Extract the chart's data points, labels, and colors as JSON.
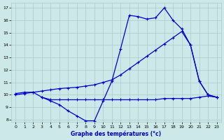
{
  "xlabel": "Graphe des températures (°c)",
  "bg_color": "#cce8e8",
  "grid_color": "#aacccc",
  "line_color": "#0000cc",
  "xlim": [
    -0.5,
    23.5
  ],
  "ylim": [
    7.8,
    17.4
  ],
  "xticks": [
    0,
    1,
    2,
    3,
    4,
    5,
    6,
    7,
    8,
    9,
    10,
    11,
    12,
    13,
    14,
    15,
    16,
    17,
    18,
    19,
    20,
    21,
    22,
    23
  ],
  "yticks": [
    8,
    9,
    10,
    11,
    12,
    13,
    14,
    15,
    16,
    17
  ],
  "line1_x": [
    0,
    1,
    2,
    3,
    4,
    5,
    6,
    7,
    8,
    9,
    10,
    11,
    12,
    13,
    14,
    15,
    16,
    17,
    18,
    19,
    20,
    21,
    22,
    23
  ],
  "line1_y": [
    10.1,
    10.2,
    10.2,
    9.8,
    9.5,
    9.2,
    8.7,
    8.3,
    7.9,
    7.9,
    9.5,
    11.1,
    13.7,
    16.4,
    16.3,
    16.1,
    16.2,
    17.0,
    16.0,
    15.3,
    14.0,
    11.1,
    10.0,
    9.8
  ],
  "line2_x": [
    0,
    1,
    2,
    3,
    4,
    5,
    6,
    7,
    8,
    9,
    10,
    11,
    12,
    13,
    14,
    15,
    16,
    17,
    18,
    19,
    20,
    21,
    22,
    23
  ],
  "line2_y": [
    10.0,
    10.1,
    10.2,
    10.3,
    10.4,
    10.5,
    10.55,
    10.6,
    10.7,
    10.8,
    11.0,
    11.2,
    11.6,
    12.1,
    12.6,
    13.1,
    13.6,
    14.1,
    14.6,
    15.1,
    14.0,
    11.1,
    10.0,
    9.8
  ],
  "line3_x": [
    3,
    4,
    5,
    6,
    7,
    8,
    9,
    10,
    11,
    12,
    13,
    14,
    15,
    16,
    17,
    18,
    19,
    20,
    21,
    22,
    23
  ],
  "line3_y": [
    9.8,
    9.6,
    9.6,
    9.6,
    9.6,
    9.6,
    9.6,
    9.6,
    9.6,
    9.6,
    9.6,
    9.6,
    9.6,
    9.6,
    9.7,
    9.7,
    9.7,
    9.7,
    9.8,
    9.9,
    9.8
  ],
  "marker": "+",
  "markersize": 3,
  "linewidth": 0.9,
  "tick_fontsize": 4.5,
  "xlabel_fontsize": 5.5
}
